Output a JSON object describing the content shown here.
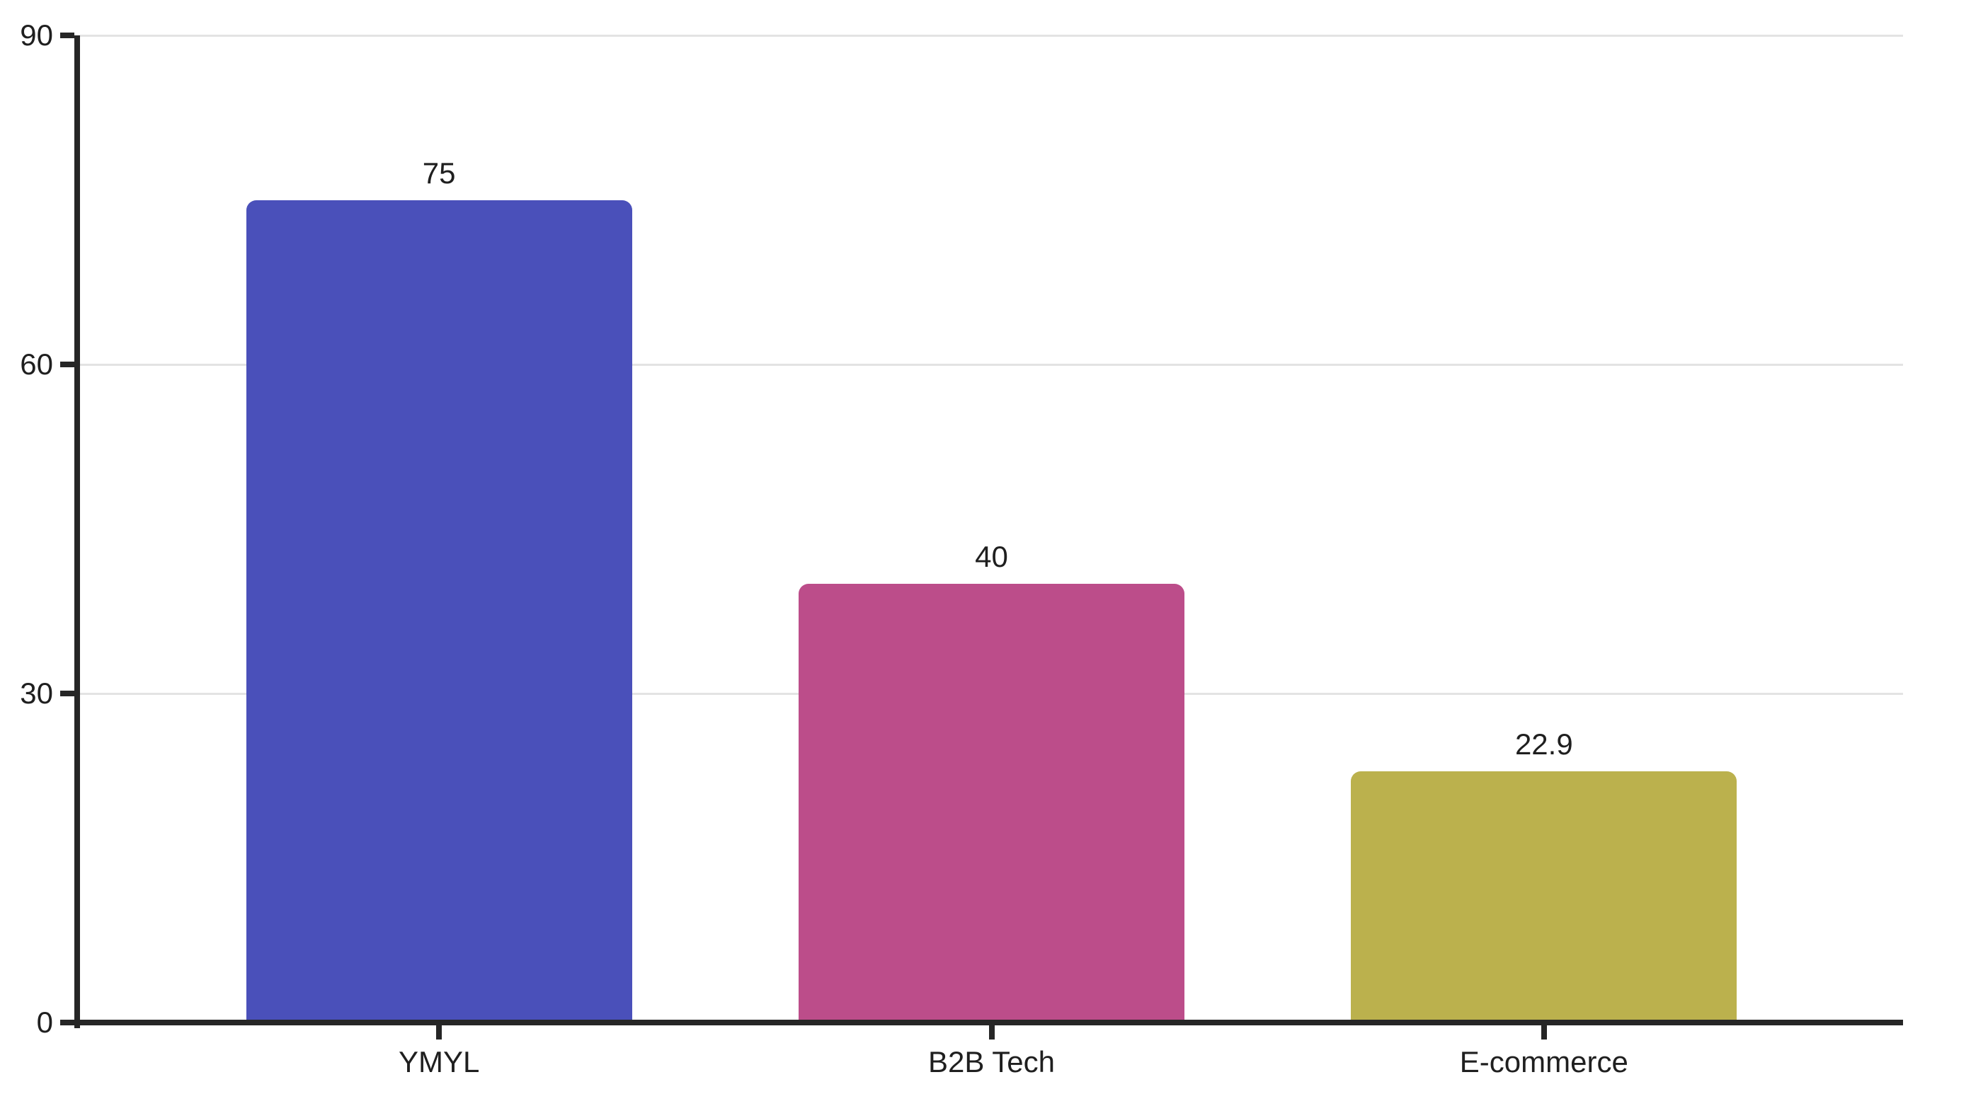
{
  "chart_data": {
    "type": "bar",
    "title": "",
    "xlabel": "",
    "ylabel": "",
    "categories": [
      "YMYL",
      "B2B Tech",
      "E-commerce"
    ],
    "values": [
      75,
      40,
      22.9
    ],
    "value_labels": [
      "75",
      "40",
      "22.9"
    ],
    "bar_colors": [
      "#4a50ba",
      "#bc4d8a",
      "#bbb14d"
    ],
    "ylim": [
      0,
      90
    ],
    "yticks": [
      0,
      30,
      60,
      90
    ],
    "ytick_labels": [
      "0",
      "30",
      "60",
      "90"
    ],
    "grid": "horizontal",
    "legend": "none",
    "colors": {
      "axis": "#262626",
      "grid": "#e3e3e3",
      "text": "#1f1f1f",
      "background": "#ffffff"
    }
  }
}
